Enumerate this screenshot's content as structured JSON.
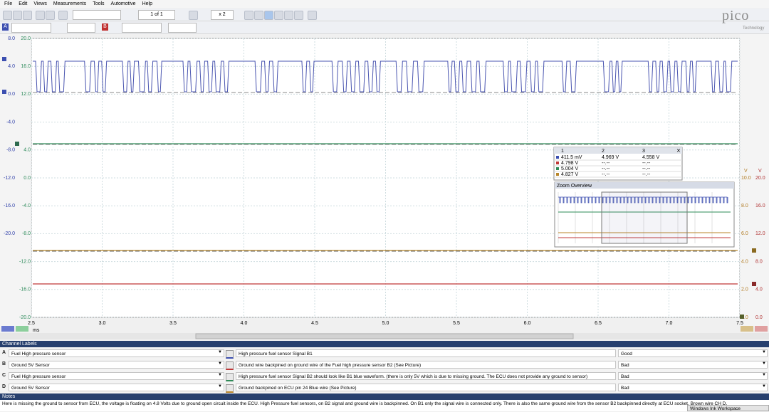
{
  "menu": [
    "File",
    "Edit",
    "Views",
    "Measurements",
    "Tools",
    "Automotive",
    "Help"
  ],
  "toolbar": {
    "page": "1 of 1",
    "zoom": "x 2",
    "channel_a": "A",
    "channel_b": "B"
  },
  "logo": {
    "name": "pico",
    "sub": "Technology"
  },
  "axes": {
    "left_1": {
      "unit": "V",
      "ticks": [
        "8.0",
        "4.0",
        "0.0",
        "-4.0",
        "-8.0",
        "-12.0",
        "-16.0",
        "-20.0"
      ]
    },
    "left_2": {
      "unit": "V",
      "ticks": [
        "20.0",
        "16.0",
        "12.0",
        null,
        "4.0",
        "0.0",
        "-4.0",
        "-8.0",
        "-12.0",
        "-16.0",
        "-20.0"
      ]
    },
    "right_1": {
      "unit": "V",
      "ticks": [
        null,
        null,
        null,
        null,
        null,
        "10.0",
        "8.0",
        "6.0",
        "4.0",
        "2.0",
        "0.0"
      ]
    },
    "right_2": {
      "unit": "V",
      "ticks": [
        null,
        null,
        null,
        null,
        null,
        "20.0",
        "16.0",
        "12.0",
        "8.0",
        "4.0",
        "0.0"
      ]
    },
    "x": {
      "unit": "ms",
      "ticks": [
        "2.5",
        "3.0",
        "3.5",
        "4.0",
        "4.5",
        "5.0",
        "5.5",
        "6.0",
        "6.5",
        "7.0",
        "7.5"
      ]
    }
  },
  "measurements": {
    "headers": [
      "1",
      "2",
      "3"
    ],
    "rows": [
      [
        "411.5 mV",
        "4.969 V",
        "4.558 V"
      ],
      [
        "4.798 V",
        "--.--",
        "--.--"
      ],
      [
        "5.004 V",
        "--.--",
        "--.--"
      ],
      [
        "4.827 V",
        "--.--",
        "--.--"
      ]
    ]
  },
  "zoom_overview": {
    "title": "Zoom Overview"
  },
  "channel_labels": {
    "title": "Channel Labels",
    "rows": [
      {
        "channel": "A",
        "name": "Fuel High pressure sensor",
        "description": "High pressure fuel sensor  Signal B1",
        "status": "Good"
      },
      {
        "channel": "B",
        "name": "Ground 5V Sensor",
        "description": "Ground wire backpined on ground wire of the Fuel high pressure sensor B2 (See Picture)",
        "status": "Bad"
      },
      {
        "channel": "C",
        "name": "Fuel High pressure sensor",
        "description": "High pressure fuel sensor  Signal B2 should look like B1 blue waveform. (there is only 5V which is due to missing ground. The ECU does not provide any ground to sensor)",
        "status": "Bad"
      },
      {
        "channel": "D",
        "name": "Ground 5V Sensor",
        "description": "Ground backpined on ECU pin 24 Blue wire (See Picture)",
        "status": "Bad"
      }
    ]
  },
  "notes": {
    "title": "Notes",
    "text": "Here is missing the ground to sensor from ECU, the voltage is floating on 4.8 Volts due to ground open circuit inside the ECU.    High Pressure fuel sensors, on B2 signal and ground wire is backpinned. On B1 only the signal wire is connected only. There is also the same ground wire from the sensor B2 backpinned directly at ECU socket, Brown wire CH D."
  },
  "taskbar": "Windows Ink Workspace"
}
